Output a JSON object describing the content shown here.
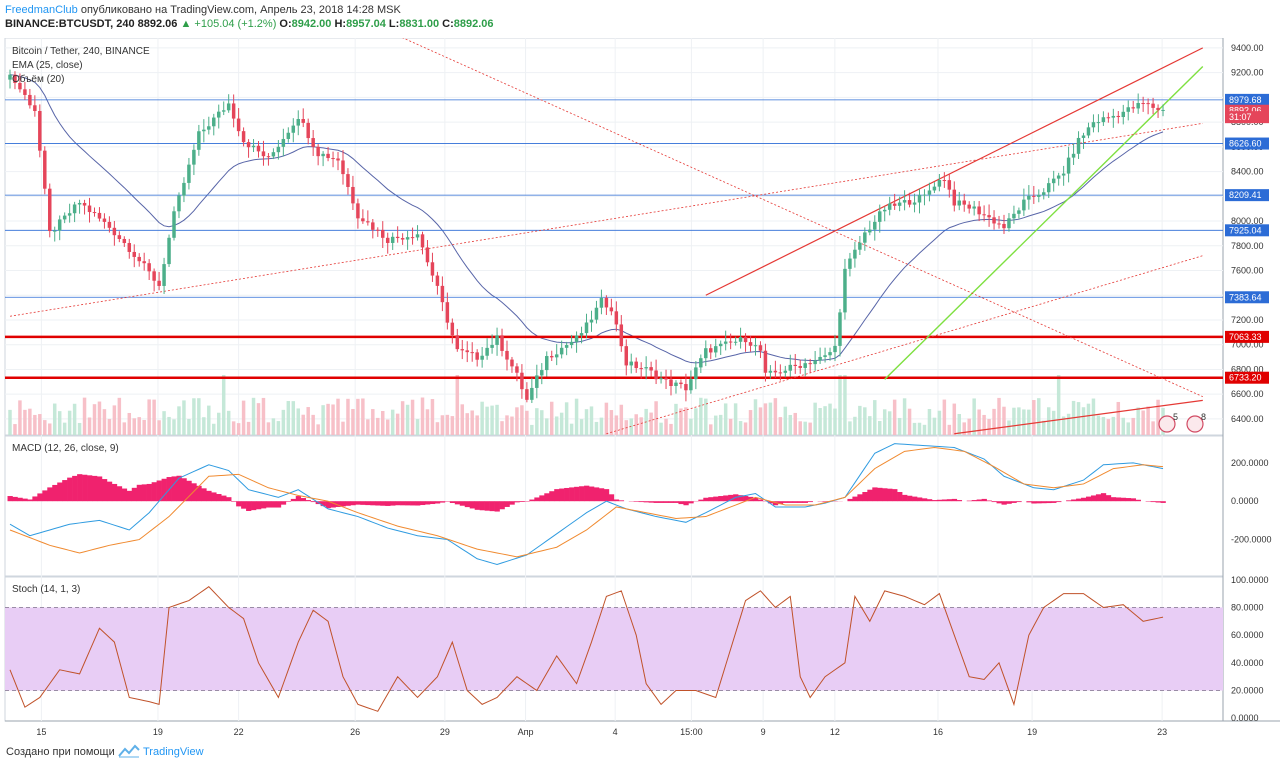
{
  "header": {
    "author": "FreedmanClub",
    "published": "опубликовано на TradingView.com, Апрель 23, 2018 14:28 MSK",
    "symbol": "BINANCE:BTCUSDT, 240",
    "last": "8892.06",
    "change": "▲ +105.04 (+1.2%)",
    "o_label": "O:",
    "o_value": "8942.00",
    "h_label": "H:",
    "h_value": "8957.04",
    "l_label": "L:",
    "l_value": "8831.00",
    "c_label": "C:",
    "c_value": "8892.06"
  },
  "footer": {
    "created": "Создано при помощи",
    "brand": "TradingView"
  },
  "colors": {
    "up": "#4caf8a",
    "down": "#e5455a",
    "ema": "#5865a8",
    "macd": "#2f9be0",
    "signal": "#f08a30",
    "hist": "#f0226e",
    "stoch_fill": "#e8cdf5",
    "stoch_line": "#c0522a",
    "trend_red": "#e53935",
    "trend_green": "#7ee040",
    "hline": "#2c6cd6",
    "level_red": "#e00000"
  },
  "chart_data": [
    {
      "type": "candlestick",
      "title": "Bitcoin / Tether, 240, BINANCE",
      "indicators": [
        "EMA (25, close)",
        "Объём (20)"
      ],
      "y_ticks": [
        6400,
        6600,
        6800,
        7000,
        7200,
        7400,
        7600,
        7800,
        8000,
        8200,
        8400,
        8600,
        8800,
        9000,
        9200,
        9400
      ],
      "ylim": [
        6270,
        9480
      ],
      "x_ticks": [
        "15",
        "19",
        "22",
        "26",
        "29",
        "Апр",
        "4",
        "15:00",
        "9",
        "12",
        "16",
        "19",
        "23"
      ],
      "close_anchors": [
        [
          0,
          9180
        ],
        [
          5,
          8900
        ],
        [
          8,
          7900
        ],
        [
          14,
          8150
        ],
        [
          20,
          7950
        ],
        [
          24,
          7780
        ],
        [
          30,
          7480
        ],
        [
          33,
          8050
        ],
        [
          38,
          8700
        ],
        [
          44,
          8950
        ],
        [
          47,
          8650
        ],
        [
          52,
          8500
        ],
        [
          58,
          8850
        ],
        [
          62,
          8550
        ],
        [
          66,
          8500
        ],
        [
          70,
          8050
        ],
        [
          76,
          7850
        ],
        [
          82,
          7900
        ],
        [
          86,
          7450
        ],
        [
          90,
          6950
        ],
        [
          94,
          6900
        ],
        [
          98,
          7050
        ],
        [
          102,
          6750
        ],
        [
          104,
          6550
        ],
        [
          108,
          6900
        ],
        [
          114,
          7050
        ],
        [
          116,
          7150
        ],
        [
          119,
          7350
        ],
        [
          121,
          7300
        ],
        [
          124,
          6850
        ],
        [
          128,
          6800
        ],
        [
          132,
          6700
        ],
        [
          136,
          6650
        ],
        [
          140,
          6950
        ],
        [
          144,
          7000
        ],
        [
          148,
          7050
        ],
        [
          151,
          6950
        ],
        [
          152,
          6750
        ],
        [
          156,
          6800
        ],
        [
          160,
          6850
        ],
        [
          164,
          6900
        ],
        [
          166,
          6980
        ],
        [
          168,
          7600
        ],
        [
          172,
          7900
        ],
        [
          176,
          8100
        ],
        [
          180,
          8150
        ],
        [
          184,
          8200
        ],
        [
          186,
          8300
        ],
        [
          188,
          8350
        ],
        [
          190,
          8150
        ],
        [
          194,
          8100
        ],
        [
          198,
          8000
        ],
        [
          200,
          7950
        ],
        [
          204,
          8150
        ],
        [
          208,
          8250
        ],
        [
          212,
          8400
        ],
        [
          215,
          8650
        ],
        [
          218,
          8800
        ],
        [
          222,
          8850
        ],
        [
          228,
          8950
        ],
        [
          232,
          8892
        ]
      ],
      "hlines": [
        8979.68,
        8626.6,
        8209.41,
        7925.04,
        7383.64
      ],
      "red_levels": [
        7063.33,
        6733.2
      ],
      "price_tags": [
        {
          "value": 8979.68,
          "label": "8979.68",
          "color": "#2c6cd6"
        },
        {
          "value": 8892.06,
          "label": "8892.06",
          "color": "#e5455a"
        },
        {
          "value": 8840.0,
          "label": "31:07",
          "color": "#e5455a"
        },
        {
          "value": 8626.6,
          "label": "8626.60",
          "color": "#2c6cd6"
        },
        {
          "value": 8209.41,
          "label": "8209.41",
          "color": "#2c6cd6"
        },
        {
          "value": 7925.04,
          "label": "7925.04",
          "color": "#2c6cd6"
        },
        {
          "value": 7383.64,
          "label": "7383.64",
          "color": "#2c6cd6"
        },
        {
          "value": 7063.33,
          "label": "7063.33",
          "color": "#e00000"
        },
        {
          "value": 6733.2,
          "label": "6733.20",
          "color": "#e00000"
        }
      ],
      "badges": [
        "5",
        "8"
      ]
    },
    {
      "type": "line",
      "title": "MACD (12, 26, close, 9)",
      "y_ticks": [
        200,
        0,
        -200
      ],
      "y_tick_labels": [
        "200.0000",
        "0.0000",
        "-200.0000"
      ],
      "ylim": [
        -390,
        340
      ],
      "macd_anchors": [
        [
          0,
          -120
        ],
        [
          4,
          -180
        ],
        [
          8,
          -150
        ],
        [
          12,
          -120
        ],
        [
          18,
          -100
        ],
        [
          24,
          -150
        ],
        [
          28,
          -60
        ],
        [
          34,
          120
        ],
        [
          40,
          190
        ],
        [
          44,
          160
        ],
        [
          48,
          60
        ],
        [
          54,
          20
        ],
        [
          58,
          60
        ],
        [
          64,
          -40
        ],
        [
          70,
          -80
        ],
        [
          76,
          -140
        ],
        [
          82,
          -180
        ],
        [
          88,
          -200
        ],
        [
          94,
          -300
        ],
        [
          98,
          -330
        ],
        [
          104,
          -280
        ],
        [
          110,
          -170
        ],
        [
          116,
          -60
        ],
        [
          120,
          0
        ],
        [
          124,
          -40
        ],
        [
          130,
          -80
        ],
        [
          136,
          -110
        ],
        [
          140,
          -60
        ],
        [
          146,
          20
        ],
        [
          150,
          40
        ],
        [
          154,
          -30
        ],
        [
          160,
          -30
        ],
        [
          164,
          -10
        ],
        [
          168,
          20
        ],
        [
          174,
          250
        ],
        [
          178,
          300
        ],
        [
          184,
          290
        ],
        [
          190,
          280
        ],
        [
          196,
          220
        ],
        [
          200,
          130
        ],
        [
          206,
          70
        ],
        [
          210,
          60
        ],
        [
          216,
          110
        ],
        [
          220,
          190
        ],
        [
          226,
          200
        ],
        [
          232,
          170
        ]
      ],
      "signal_anchors": [
        [
          0,
          -150
        ],
        [
          8,
          -230
        ],
        [
          14,
          -270
        ],
        [
          20,
          -230
        ],
        [
          26,
          -200
        ],
        [
          32,
          -80
        ],
        [
          40,
          130
        ],
        [
          46,
          140
        ],
        [
          52,
          70
        ],
        [
          58,
          30
        ],
        [
          64,
          0
        ],
        [
          70,
          -60
        ],
        [
          78,
          -130
        ],
        [
          86,
          -180
        ],
        [
          94,
          -250
        ],
        [
          102,
          -290
        ],
        [
          110,
          -240
        ],
        [
          116,
          -150
        ],
        [
          122,
          -30
        ],
        [
          128,
          -60
        ],
        [
          134,
          -90
        ],
        [
          140,
          -80
        ],
        [
          146,
          -20
        ],
        [
          150,
          20
        ],
        [
          156,
          -20
        ],
        [
          162,
          -20
        ],
        [
          168,
          20
        ],
        [
          174,
          170
        ],
        [
          180,
          260
        ],
        [
          186,
          280
        ],
        [
          192,
          260
        ],
        [
          198,
          180
        ],
        [
          204,
          90
        ],
        [
          210,
          70
        ],
        [
          216,
          90
        ],
        [
          222,
          170
        ],
        [
          228,
          190
        ],
        [
          232,
          180
        ]
      ]
    },
    {
      "type": "line",
      "title": "Stoch (14, 1, 3)",
      "y_ticks": [
        100,
        80,
        60,
        40,
        20,
        0
      ],
      "y_tick_labels": [
        "100.0000",
        "80.0000",
        "60.0000",
        "40.0000",
        "20.0000",
        "0.0000"
      ],
      "ylim": [
        -2,
        102
      ],
      "band": [
        20,
        80
      ],
      "anchors": [
        [
          0,
          35
        ],
        [
          3,
          8
        ],
        [
          6,
          15
        ],
        [
          10,
          35
        ],
        [
          14,
          32
        ],
        [
          18,
          65
        ],
        [
          21,
          55
        ],
        [
          24,
          15
        ],
        [
          28,
          12
        ],
        [
          30,
          10
        ],
        [
          32,
          80
        ],
        [
          36,
          85
        ],
        [
          40,
          95
        ],
        [
          44,
          80
        ],
        [
          47,
          72
        ],
        [
          50,
          40
        ],
        [
          54,
          15
        ],
        [
          58,
          55
        ],
        [
          61,
          78
        ],
        [
          64,
          70
        ],
        [
          67,
          30
        ],
        [
          70,
          10
        ],
        [
          74,
          5
        ],
        [
          78,
          30
        ],
        [
          82,
          15
        ],
        [
          86,
          30
        ],
        [
          89,
          55
        ],
        [
          92,
          20
        ],
        [
          95,
          10
        ],
        [
          98,
          15
        ],
        [
          102,
          30
        ],
        [
          106,
          20
        ],
        [
          110,
          45
        ],
        [
          114,
          25
        ],
        [
          117,
          55
        ],
        [
          120,
          88
        ],
        [
          123,
          92
        ],
        [
          126,
          60
        ],
        [
          128,
          25
        ],
        [
          131,
          10
        ],
        [
          134,
          20
        ],
        [
          138,
          20
        ],
        [
          142,
          15
        ],
        [
          145,
          50
        ],
        [
          148,
          85
        ],
        [
          151,
          92
        ],
        [
          154,
          80
        ],
        [
          157,
          88
        ],
        [
          159,
          30
        ],
        [
          161,
          15
        ],
        [
          164,
          30
        ],
        [
          168,
          40
        ],
        [
          170,
          88
        ],
        [
          173,
          70
        ],
        [
          176,
          92
        ],
        [
          180,
          88
        ],
        [
          184,
          82
        ],
        [
          187,
          90
        ],
        [
          190,
          60
        ],
        [
          193,
          30
        ],
        [
          196,
          28
        ],
        [
          199,
          40
        ],
        [
          202,
          10
        ],
        [
          205,
          60
        ],
        [
          208,
          80
        ],
        [
          212,
          90
        ],
        [
          216,
          90
        ],
        [
          220,
          80
        ],
        [
          224,
          82
        ],
        [
          228,
          70
        ],
        [
          232,
          73
        ]
      ]
    }
  ]
}
